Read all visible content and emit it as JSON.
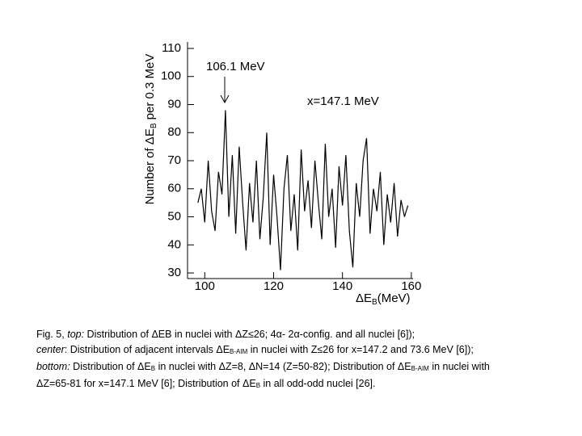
{
  "chart_data": {
    "type": "line",
    "ylabel": {
      "main": "Number of ΔE",
      "sub": "B",
      "rest": " per 0.3 MeV"
    },
    "xlabel": {
      "main": "ΔE",
      "sub": "B",
      "rest": "(MeV)"
    },
    "annotations": [
      "106.1 MeV",
      "x=147.1 MeV"
    ],
    "x": [
      98,
      99,
      100,
      101,
      102,
      103,
      104,
      105,
      106,
      107,
      108,
      109,
      110,
      111,
      112,
      113,
      114,
      115,
      116,
      117,
      118,
      119,
      120,
      121,
      122,
      123,
      124,
      125,
      126,
      127,
      128,
      129,
      130,
      131,
      132,
      133,
      134,
      135,
      136,
      137,
      138,
      139,
      140,
      141,
      142,
      143,
      144,
      145,
      146,
      147,
      148,
      149,
      150,
      151,
      152,
      153,
      154,
      155,
      156,
      157,
      158,
      159
    ],
    "series": [
      {
        "color": "#000000",
        "values": [
          55,
          60,
          48,
          70,
          52,
          45,
          66,
          58,
          88,
          50,
          72,
          44,
          75,
          55,
          38,
          62,
          48,
          70,
          42,
          57,
          80,
          40,
          65,
          50,
          31,
          60,
          72,
          45,
          58,
          38,
          74,
          52,
          63,
          46,
          70,
          55,
          42,
          76,
          50,
          60,
          39,
          68,
          54,
          72,
          45,
          32,
          62,
          50,
          70,
          78,
          44,
          60,
          52,
          66,
          40,
          58,
          48,
          62,
          43,
          56,
          50,
          54
        ]
      }
    ],
    "xlim": [
      95,
      160.5
    ],
    "ylim": [
      28,
      112.3
    ],
    "xticks": [
      100,
      120,
      140,
      160
    ],
    "yticks": [
      30,
      40,
      50,
      60,
      70,
      80,
      90,
      100,
      110
    ]
  },
  "caption": {
    "l1": [
      "Fig. 5, ",
      "top:",
      " Distribution of ΔEB in nuclei with ΔZ≤26; 4α- 2α-config. and all nuclei [6]);"
    ],
    "l2": [
      "center",
      ": Distribution of adjacent intervals ΔE",
      "B-AIM",
      " in nuclei with Z≤26 for x=147.2 and 73.6 MeV [6]);"
    ],
    "l3": [
      "bottom:",
      " Distribution of ΔE",
      "B",
      " in nuclei with ΔZ=8, ΔN=14 (Z=50-82); Distribution of ΔE",
      "B-AIM",
      " in nuclei with"
    ],
    "l4": [
      "ΔZ=65-81 for x=147.1 MeV [6]; Distribution of ΔE",
      "B",
      " in all odd-odd nuclei [26]."
    ]
  }
}
